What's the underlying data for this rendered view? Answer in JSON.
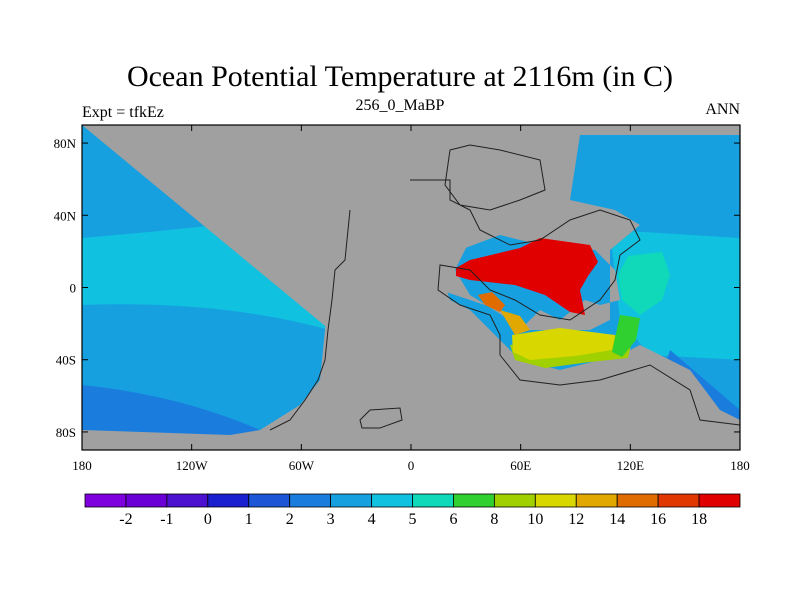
{
  "title": "Ocean Potential Temperature at 2116m (in C)",
  "subtitle_left": "Expt = tfkEz",
  "subtitle_center": "256_0_MaBP",
  "subtitle_right": "ANN",
  "x_ticks": [
    "180",
    "120W",
    "60W",
    "0",
    "60E",
    "120E",
    "180"
  ],
  "y_ticks": [
    "80N",
    "40N",
    "0",
    "40S",
    "80S"
  ],
  "colorbar": {
    "colors": [
      "#7f00df",
      "#6a00d6",
      "#4d12cf",
      "#1a1fd0",
      "#1c55d6",
      "#1a7dde",
      "#16a0e0",
      "#10c1e0",
      "#0fd9b8",
      "#30d030",
      "#a0d000",
      "#d8d800",
      "#e0a800",
      "#e06c00",
      "#e03800",
      "#e00000"
    ],
    "labels": [
      "-2",
      "-1",
      "0",
      "1",
      "2",
      "3",
      "4",
      "5",
      "6",
      "8",
      "10",
      "12",
      "14",
      "16",
      "18"
    ]
  },
  "colors": {
    "land": "#a0a0a0",
    "ocean_deep_blue": "#1a7dde",
    "ocean_blue": "#16a0e0",
    "ocean_cyan": "#10c1e0",
    "ocean_teal": "#0fd9b8",
    "warm_red": "#e00000",
    "warm_orange": "#e06c00",
    "warm_amber": "#e0a800",
    "warm_yellow": "#d8d800",
    "warm_lime": "#a0d000",
    "warm_green": "#30d030"
  }
}
